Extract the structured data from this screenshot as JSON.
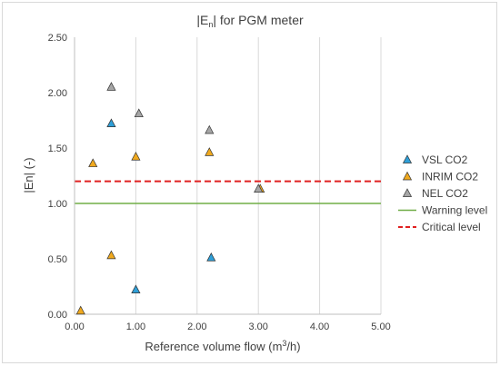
{
  "chart_data": {
    "type": "scatter",
    "title": {
      "pre": "|E",
      "sub": "n",
      "post": "| for PGM meter"
    },
    "xlabel": {
      "pre": "Reference volume flow (m",
      "sup": "3",
      "post": "/h)"
    },
    "ylabel": "|En| (-)",
    "xlim": [
      0,
      5
    ],
    "ylim": [
      0,
      2.5
    ],
    "x_ticks": [
      "0.00",
      "1.00",
      "2.00",
      "3.00",
      "4.00",
      "5.00"
    ],
    "y_ticks": [
      "0.00",
      "0.50",
      "1.00",
      "1.50",
      "2.00",
      "2.50"
    ],
    "grid": "vertical",
    "legend_position": "right",
    "series": [
      {
        "name": "VSL CO2",
        "marker": "triangle",
        "color": "#2e9fd8",
        "points": [
          [
            0.6,
            1.72
          ],
          [
            1.0,
            0.22
          ],
          [
            2.23,
            0.51
          ]
        ]
      },
      {
        "name": "INRIM CO2",
        "marker": "triangle",
        "color": "#f0a91e",
        "points": [
          [
            0.1,
            0.03
          ],
          [
            0.3,
            1.36
          ],
          [
            0.6,
            0.53
          ],
          [
            1.0,
            1.42
          ],
          [
            2.2,
            1.46
          ],
          [
            3.03,
            1.13
          ]
        ]
      },
      {
        "name": "NEL CO2",
        "marker": "triangle",
        "color": "#a6a6a6",
        "points": [
          [
            0.6,
            2.05
          ],
          [
            1.05,
            1.81
          ],
          [
            2.2,
            1.66
          ],
          [
            3.0,
            1.13
          ]
        ]
      }
    ],
    "lines": [
      {
        "name": "Warning level",
        "y": 1.0,
        "color": "#70ad47",
        "style": "solid"
      },
      {
        "name": "Critical level",
        "y": 1.2,
        "color": "#e02020",
        "style": "dashed"
      }
    ]
  }
}
